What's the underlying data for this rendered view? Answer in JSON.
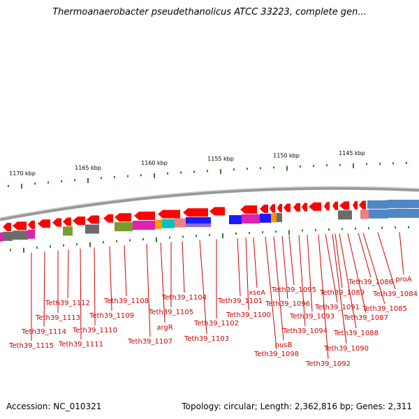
{
  "title": "Thermoanaerobacter pseudethanolicus ATCC 33223, complete gen...",
  "footer": {
    "accession": "Accession: NC_010321",
    "info": "Topology: circular; Length: 2,362,816 bp; Genes: 2,311"
  },
  "scale_labels": [
    "1170 kbp",
    "1165 kbp",
    "1160 kbp",
    "1155 kbp",
    "1150 kbp",
    "1145 kbp"
  ],
  "gene_labels": [
    "Teth39_1115",
    "Teth39_1114",
    "Teth39_1113",
    "Teth39_1112",
    "Teth39_1111",
    "Teth39_1110",
    "Teth39_1109",
    "Teth39_1108",
    "Teth39_1107",
    "argR",
    "Teth39_1105",
    "Teth39_1104",
    "Teth39_1103",
    "Teth39_1102",
    "Teth39_1101",
    "Teth39_1100",
    "xseA",
    "Teth39_1098",
    "nusB",
    "Teth39_1096",
    "Teth39_1095",
    "Teth39_1094",
    "Teth39_1093",
    "Teth39_1092",
    "Teth39_1091",
    "Teth39_1090",
    "Teth39_1089",
    "Teth39_1088",
    "Teth39_1087",
    "Teth39_1086",
    "Teth39_1085",
    "Teth39_1084",
    "proA"
  ],
  "colors": {
    "gene_arrow": "#ff0000",
    "backbone": "#999999",
    "label_line": "#cc0000",
    "tick": "#2e7d1f",
    "cog_gray": "#6b6b6b",
    "cog_magenta": "#e020b0",
    "cog_olive": "#7a9a30",
    "cog_blue": "#1a1aff",
    "cog_cyan": "#00c0c0",
    "cog_orange": "#ff9900",
    "cog_salmon": "#f08080",
    "cog_steel": "#4f86c6",
    "cog_purple": "#8a6fd0"
  }
}
